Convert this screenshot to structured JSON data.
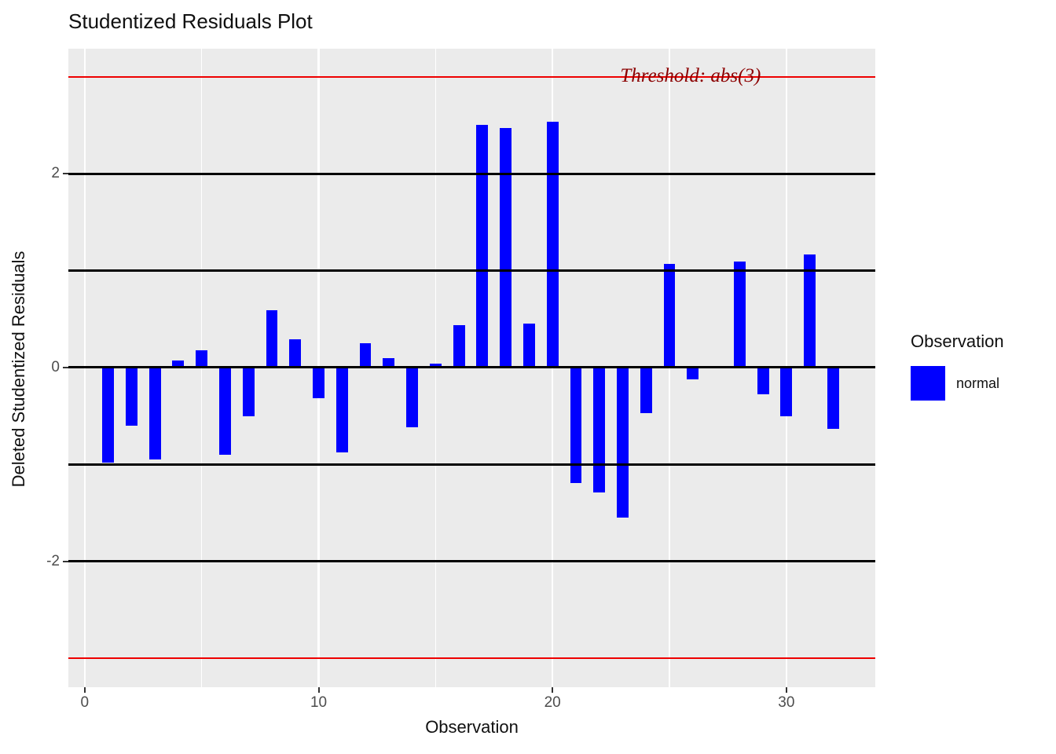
{
  "title": "Studentized Residuals Plot",
  "axes": {
    "x_label": "Observation",
    "y_label": "Deleted Studentized Residuals"
  },
  "legend": {
    "title": "Observation",
    "items": [
      {
        "label": "normal",
        "color": "#0000FF"
      }
    ]
  },
  "annotations": {
    "threshold_label": "Threshold: abs(3)"
  },
  "colors": {
    "bar": "#0000FF",
    "panel_background": "#EBEBEB",
    "gridline": "#FFFFFF",
    "reference_line": "#000000",
    "threshold_line": "#EE0000",
    "threshold_text": "#8B0000",
    "tick_text": "#4D4D4D"
  },
  "chart_data": {
    "type": "bar",
    "title": "Studentized Residuals Plot",
    "xlabel": "Observation",
    "ylabel": "Deleted Studentized Residuals",
    "series": [
      {
        "name": "normal",
        "x": [
          1,
          2,
          3,
          4,
          5,
          6,
          7,
          8,
          9,
          10,
          11,
          12,
          13,
          14,
          15,
          16,
          17,
          18,
          19,
          20,
          21,
          22,
          23,
          24,
          25,
          26,
          27,
          28,
          29,
          30,
          31,
          32
        ],
        "values": [
          -0.98,
          -0.6,
          -0.95,
          0.07,
          0.18,
          -0.9,
          -0.5,
          0.59,
          0.29,
          -0.32,
          -0.88,
          0.25,
          0.1,
          -0.62,
          0.04,
          0.44,
          2.5,
          2.47,
          0.45,
          2.54,
          -1.19,
          -1.29,
          -1.55,
          -0.47,
          1.07,
          -0.12,
          0.0,
          1.09,
          -0.28,
          -0.5,
          1.17,
          -0.63
        ]
      }
    ],
    "threshold": 3,
    "threshold_lines": [
      3,
      -3
    ],
    "reference_hlines": [
      -2,
      -1,
      0,
      1,
      2
    ],
    "x_major_gridlines": [
      0,
      10,
      20,
      30
    ],
    "x_minor_gridlines": [
      5,
      15,
      25
    ],
    "x_tick_values": [
      0,
      10,
      20,
      30
    ],
    "x_tick_labels": [
      "0",
      "10",
      "20",
      "30"
    ],
    "y_tick_values": [
      2,
      0,
      -2
    ],
    "y_tick_labels": [
      "2",
      "0",
      "-2"
    ],
    "xlim": [
      -0.7,
      33.8
    ],
    "ylim": [
      -3.3,
      3.29
    ],
    "bar_width": 0.5,
    "grid": true,
    "legend_position": "right"
  }
}
